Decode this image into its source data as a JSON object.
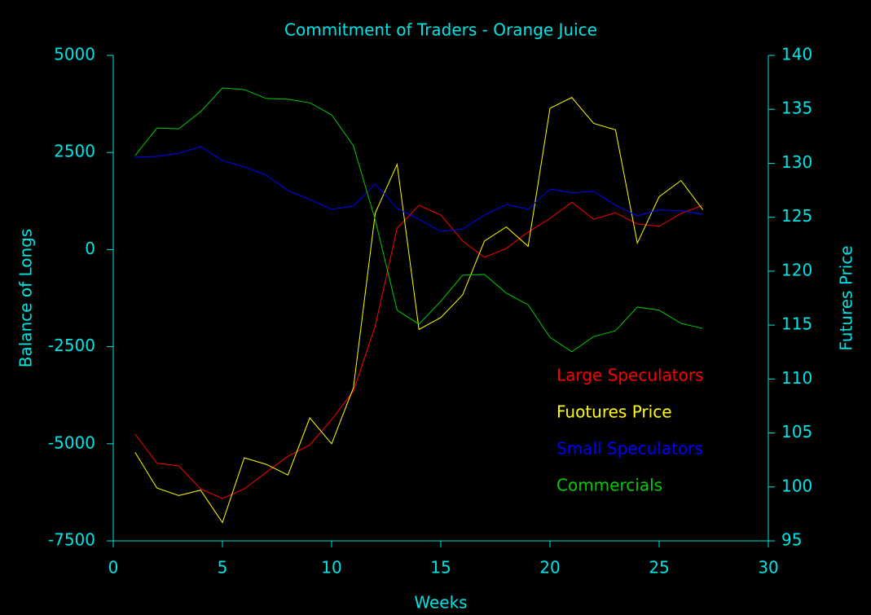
{
  "chart_data": {
    "type": "line",
    "title": "Commitment of Traders - Orange Juice",
    "x_label": "Weeks",
    "y_label": "Balance of Longs",
    "y2_label": "Futures Price",
    "x": [
      1,
      2,
      3,
      4,
      5,
      6,
      7,
      8,
      9,
      10,
      11,
      12,
      13,
      14,
      15,
      16,
      17,
      18,
      19,
      20,
      21,
      22,
      23,
      24,
      25,
      26,
      27
    ],
    "xlim": [
      0,
      30
    ],
    "xticks": [
      0,
      5,
      10,
      15,
      20,
      25,
      30
    ],
    "ylim": [
      -7500,
      5000
    ],
    "yticks": [
      -7500,
      -5000,
      -2500,
      0,
      2500,
      5000
    ],
    "y2lim": [
      95,
      140
    ],
    "y2ticks": [
      95,
      100,
      105,
      110,
      115,
      120,
      125,
      130,
      135,
      140
    ],
    "series": [
      {
        "name": "Large Speculators",
        "color": "#ff0000",
        "values": [
          -4750,
          -5500,
          -5570,
          -6160,
          -6410,
          -6160,
          -5740,
          -5320,
          -5030,
          -4380,
          -3640,
          -1960,
          550,
          1140,
          890,
          220,
          -200,
          30,
          450,
          800,
          1220,
          780,
          950,
          660,
          600,
          930,
          1140
        ]
      },
      {
        "name": "Fuotures Price",
        "color": "#ffff00",
        "axis": "y2",
        "values": [
          103.2,
          99.9,
          99.2,
          99.7,
          96.7,
          102.7,
          102.1,
          101.1,
          106.4,
          104.0,
          109.2,
          125.4,
          129.9,
          114.6,
          115.7,
          117.8,
          122.8,
          124.1,
          122.3,
          135.1,
          136.1,
          133.7,
          133.1,
          122.6,
          126.9,
          128.4,
          125.7
        ]
      },
      {
        "name": "Small Speculators",
        "color": "#0000ff",
        "values": [
          2380,
          2400,
          2480,
          2650,
          2290,
          2130,
          1920,
          1520,
          1290,
          1040,
          1120,
          1690,
          1060,
          780,
          470,
          530,
          890,
          1160,
          1040,
          1560,
          1460,
          1500,
          1140,
          870,
          1020,
          1000,
          910
        ]
      },
      {
        "name": "Commercials",
        "color": "#00cc00",
        "values": [
          2420,
          3130,
          3110,
          3550,
          4160,
          4120,
          3890,
          3870,
          3780,
          3470,
          2670,
          760,
          -1560,
          -1920,
          -1330,
          -660,
          -640,
          -1120,
          -1420,
          -2260,
          -2630,
          -2240,
          -2090,
          -1480,
          -1560,
          -1900,
          -2030
        ]
      }
    ]
  }
}
